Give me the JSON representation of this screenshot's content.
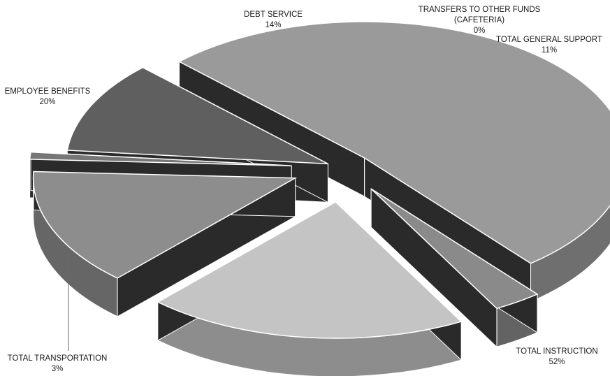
{
  "chart_data": {
    "type": "pie",
    "title": "",
    "legend": "none",
    "slices": [
      {
        "name": "TOTAL INSTRUCTION",
        "name_lines": [
          "TOTAL INSTRUCTION"
        ],
        "value": 52,
        "label": "52%",
        "color": "#9a9a9a"
      },
      {
        "name": "TOTAL TRANSPORTATION",
        "name_lines": [
          "TOTAL TRANSPORTATION"
        ],
        "value": 3,
        "label": "3%",
        "color": "#8a8a8a"
      },
      {
        "name": "EMPLOYEE BENEFITS",
        "name_lines": [
          "EMPLOYEE BENEFITS"
        ],
        "value": 20,
        "label": "20%",
        "color": "#c4c4c4"
      },
      {
        "name": "DEBT SERVICE",
        "name_lines": [
          "DEBT SERVICE"
        ],
        "value": 14,
        "label": "14%",
        "color": "#8d8d8d"
      },
      {
        "name": "TRANSFERS TO OTHER FUNDS (CAFETERIA)",
        "name_lines": [
          "TRANSFERS TO OTHER FUNDS",
          "(CAFETERIA)"
        ],
        "value": 0,
        "label": "0%",
        "color": "#777777"
      },
      {
        "name": "TOTAL GENERAL SUPPORT",
        "name_lines": [
          "TOTAL GENERAL SUPPORT"
        ],
        "value": 11,
        "label": "11%",
        "color": "#5f5f5f"
      }
    ]
  }
}
